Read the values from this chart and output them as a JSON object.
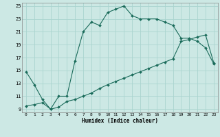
{
  "xlabel": "Humidex (Indice chaleur)",
  "bg_color": "#cce8e4",
  "grid_color": "#aad4cf",
  "line_color": "#1a6b5a",
  "xlim": [
    -0.5,
    23.5
  ],
  "ylim": [
    8.5,
    25.5
  ],
  "yticks": [
    9,
    11,
    13,
    15,
    17,
    19,
    21,
    23,
    25
  ],
  "xticks": [
    0,
    1,
    2,
    3,
    4,
    5,
    6,
    7,
    8,
    9,
    10,
    11,
    12,
    13,
    14,
    15,
    16,
    17,
    18,
    19,
    20,
    21,
    22,
    23
  ],
  "curve1_x": [
    0,
    1,
    2,
    3,
    4,
    5,
    6,
    7,
    8,
    9,
    10,
    11,
    12,
    13,
    14,
    15,
    16,
    17,
    18,
    19,
    20,
    21,
    22,
    23
  ],
  "curve1_y": [
    14.8,
    12.8,
    10.5,
    9.0,
    11.0,
    11.0,
    16.5,
    21.0,
    22.5,
    22.0,
    24.0,
    24.5,
    25.0,
    23.5,
    23.0,
    23.0,
    23.0,
    22.5,
    22.0,
    20.0,
    20.0,
    19.5,
    18.5,
    16.0
  ],
  "curve2_x": [
    0,
    1,
    2,
    3,
    4,
    5,
    6,
    7,
    8,
    9,
    10,
    11,
    12,
    13,
    14,
    15,
    16,
    17,
    18,
    19,
    20,
    21,
    22,
    23
  ],
  "curve2_y": [
    9.5,
    9.7,
    10.0,
    9.0,
    9.3,
    10.2,
    10.5,
    11.0,
    11.5,
    12.2,
    12.8,
    13.3,
    13.8,
    14.3,
    14.8,
    15.3,
    15.8,
    16.3,
    16.8,
    19.5,
    19.8,
    20.2,
    20.5,
    16.2
  ]
}
